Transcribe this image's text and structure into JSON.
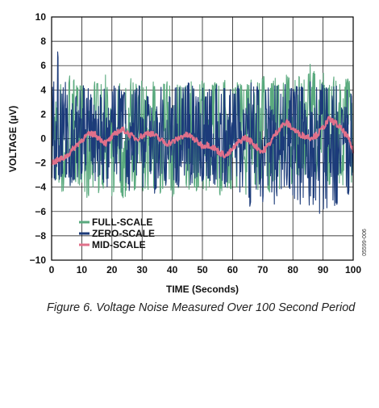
{
  "caption": "Figure 6. Voltage Noise Measured Over 100 Second Period",
  "side_code": "05599-006",
  "chart_data": {
    "type": "line",
    "title": "",
    "xlabel": "TIME (Seconds)",
    "ylabel": "VOLTAGE (µV)",
    "xlim": [
      0,
      100
    ],
    "ylim": [
      -10,
      10
    ],
    "x_ticks": [
      0,
      10,
      20,
      30,
      40,
      50,
      60,
      70,
      80,
      90,
      100
    ],
    "y_ticks": [
      -10,
      -8,
      -6,
      -4,
      -2,
      0,
      2,
      4,
      6,
      8,
      10
    ],
    "grid": true,
    "legend_position": "bottom-left",
    "x": [
      0,
      2,
      4,
      6,
      8,
      10,
      12,
      14,
      16,
      18,
      20,
      22,
      24,
      26,
      28,
      30,
      32,
      34,
      36,
      38,
      40,
      42,
      44,
      46,
      48,
      50,
      52,
      54,
      56,
      58,
      60,
      62,
      64,
      66,
      68,
      70,
      72,
      74,
      76,
      78,
      80,
      82,
      84,
      86,
      88,
      90,
      92,
      94,
      96,
      98,
      100
    ],
    "series": [
      {
        "name": "FULL-SCALE",
        "color": "#5aaa7e",
        "values": [
          -1.0,
          1.5,
          -2.0,
          2.2,
          -1.5,
          1.8,
          -2.5,
          2.0,
          -1.8,
          2.5,
          -2.2,
          1.6,
          -2.8,
          2.4,
          -1.4,
          2.0,
          -2.6,
          1.9,
          -2.0,
          2.6,
          -2.3,
          1.7,
          -2.9,
          2.1,
          -1.6,
          2.4,
          -2.0,
          1.8,
          -2.4,
          2.2,
          -1.8,
          2.0,
          -2.2,
          2.6,
          -1.5,
          2.8,
          -2.0,
          2.4,
          -1.6,
          2.9,
          -1.2,
          3.2,
          -0.8,
          3.4,
          -1.0,
          3.0,
          -1.4,
          2.8,
          -1.6,
          2.6,
          -1.2
        ],
        "min": [
          -4.2,
          -3.5,
          -4.8,
          -3.9,
          -4.5,
          -4.0,
          -5.2,
          -4.3,
          -4.6,
          -3.8,
          -4.7,
          -4.1,
          -5.0,
          -3.9,
          -4.4,
          -4.2,
          -5.1,
          -4.0,
          -4.5,
          -3.7,
          -4.8,
          -4.2,
          -4.9,
          -4.0,
          -4.3,
          -4.1,
          -4.6,
          -3.9,
          -4.7,
          -4.0,
          -4.5,
          -4.2,
          -4.8,
          -3.8,
          -4.4,
          -3.6,
          -4.5,
          -3.9,
          -4.2,
          -3.5,
          -3.8,
          -3.2,
          -3.6,
          -3.0,
          -3.4,
          -3.2,
          -3.8,
          -3.5,
          -4.0,
          -3.8,
          -3.6
        ],
        "max": [
          4.5,
          5.0,
          4.2,
          5.4,
          4.6,
          4.9,
          4.0,
          4.8,
          4.4,
          5.3,
          4.1,
          4.7,
          4.3,
          5.0,
          4.5,
          4.8,
          4.2,
          4.9,
          4.4,
          5.2,
          4.0,
          4.6,
          4.3,
          5.1,
          4.7,
          4.9,
          4.2,
          4.8,
          4.5,
          5.0,
          4.3,
          4.7,
          4.1,
          5.2,
          4.6,
          5.3,
          4.4,
          5.0,
          4.5,
          5.4,
          4.8,
          5.6,
          5.0,
          6.3,
          4.9,
          5.7,
          4.6,
          5.2,
          4.4,
          5.0,
          4.2
        ]
      },
      {
        "name": "ZERO-SCALE",
        "color": "#1c3b7a",
        "values": [
          1.0,
          -0.5,
          2.0,
          -1.0,
          1.5,
          -1.5,
          1.8,
          -0.8,
          1.2,
          -1.6,
          1.9,
          -1.1,
          1.4,
          -1.7,
          1.6,
          -0.9,
          1.3,
          -1.8,
          1.7,
          -1.2,
          1.5,
          -1.4,
          1.9,
          -1.0,
          1.2,
          -1.5,
          1.8,
          -1.3,
          1.4,
          -1.9,
          1.1,
          -1.6,
          1.5,
          -2.2,
          1.2,
          -2.5,
          1.4,
          -2.0,
          1.6,
          -2.3,
          1.3,
          -1.8,
          1.0,
          -2.4,
          1.5,
          -1.7,
          1.2,
          -2.1,
          1.4,
          -1.6,
          1.0
        ],
        "min": [
          -3.2,
          -3.6,
          -3.0,
          -3.9,
          -3.4,
          -4.0,
          -3.1,
          -3.7,
          -3.5,
          -4.2,
          -3.2,
          -3.8,
          -3.6,
          -4.4,
          -3.3,
          -4.1,
          -3.5,
          -4.6,
          -3.2,
          -3.9,
          -3.4,
          -4.0,
          -3.1,
          -4.3,
          -3.6,
          -3.9,
          -3.3,
          -4.2,
          -3.7,
          -4.5,
          -3.6,
          -4.9,
          -4.2,
          -5.8,
          -4.6,
          -5.2,
          -4.0,
          -5.5,
          -4.4,
          -5.0,
          -4.8,
          -5.9,
          -4.5,
          -6.3,
          -5.2,
          -8.1,
          -5.0,
          -6.0,
          -4.6,
          -5.4,
          -4.2
        ],
        "max": [
          4.0,
          7.2,
          4.5,
          5.2,
          3.8,
          4.6,
          4.2,
          5.0,
          3.7,
          4.4,
          4.1,
          4.8,
          3.9,
          4.3,
          4.0,
          4.9,
          3.8,
          4.5,
          4.2,
          5.1,
          3.9,
          4.6,
          4.3,
          4.8,
          4.0,
          4.4,
          4.1,
          4.7,
          3.9,
          4.5,
          3.8,
          4.6,
          4.0,
          4.9,
          4.3,
          5.0,
          4.1,
          4.7,
          4.2,
          4.6,
          4.0,
          4.8,
          4.4,
          5.1,
          4.2,
          4.6,
          3.9,
          4.4,
          4.1,
          4.3,
          3.8
        ]
      },
      {
        "name": "MID-SCALE",
        "color": "#e0708a",
        "values": [
          -2.0,
          -1.8,
          -1.6,
          -1.2,
          -0.6,
          -0.1,
          0.3,
          0.4,
          0.0,
          -0.4,
          0.1,
          0.6,
          0.7,
          0.3,
          0.0,
          0.2,
          0.5,
          0.3,
          -0.1,
          -0.4,
          -0.3,
          0.0,
          0.3,
          0.2,
          -0.2,
          -0.6,
          -0.5,
          -0.8,
          -1.2,
          -1.4,
          -0.9,
          -0.3,
          0.1,
          -0.2,
          -0.7,
          -1.1,
          -0.5,
          0.3,
          1.0,
          1.3,
          0.8,
          0.4,
          0.2,
          0.1,
          0.3,
          0.9,
          1.6,
          1.3,
          0.8,
          0.2,
          -1.0
        ]
      }
    ]
  }
}
